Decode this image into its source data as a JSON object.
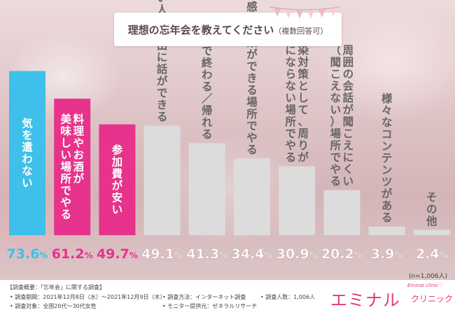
{
  "chart_data": {
    "type": "bar",
    "title": "理想の忘年会を教えてください",
    "subtitle": "（複数回答可）",
    "categories": [
      "気を遣わない",
      "料理やお酒が美味しい場所でやる",
      "参加費が安い",
      "話したい人と自由に話ができる",
      "一次会で終わる／帰れる",
      "感染対策ができる場所でやる",
      "感染対策として、周りが気にならない場所でやる",
      "周囲の会話が聞こえにくい（聞こえない）場所でやる",
      "様々なコンテンツがある",
      "その他"
    ],
    "label_lines": [
      [
        "気を遣わない"
      ],
      [
        "料理やお酒が",
        "美味しい場所でやる"
      ],
      [
        "参加費が安い"
      ],
      [
        "話したい人と自由に話ができる"
      ],
      [
        "一次会で終わる／帰れる"
      ],
      [
        "感染対策ができる場所でやる"
      ],
      [
        "感染対策として、周りが",
        "気にならない場所でやる"
      ],
      [
        "周囲の会話が聞こえにくい",
        "（聞こえない）場所でやる"
      ],
      [
        "様々なコンテンツがある"
      ],
      [
        "その他"
      ]
    ],
    "values": [
      73.6,
      61.2,
      49.7,
      49.1,
      41.3,
      34.4,
      30.9,
      20.2,
      3.9,
      2.4
    ],
    "value_labels": [
      "73.6%",
      "61.2%",
      "49.7%",
      "49.1%",
      "41.3%",
      "34.4%",
      "30.9%",
      "20.2%",
      "3.9%",
      "2.4%"
    ],
    "colors": [
      "#3ec0ea",
      "#e7338c",
      "#e7338c",
      "#dcdcdc",
      "#dcdcdc",
      "#dcdcdc",
      "#dcdcdc",
      "#dcdcdc",
      "#dcdcdc",
      "#dcdcdc"
    ],
    "value_colors": [
      "#3ec0ea",
      "#e7338c",
      "#e7338c",
      "#ffffff",
      "#ffffff",
      "#ffffff",
      "#ffffff",
      "#ffffff",
      "#ffffff",
      "#ffffff"
    ],
    "label_colors": [
      "#ffffff",
      "#ffffff",
      "#ffffff",
      "#666666",
      "#666666",
      "#666666",
      "#666666",
      "#666666",
      "#666666",
      "#666666"
    ],
    "ylim": [
      0,
      75
    ],
    "grid": false,
    "n_note": "(n=1,006人)"
  },
  "footer": {
    "heading": "【調査概要：「忘年会」に関する調査】",
    "period": "• 調査期間：2021年12月8日（水）～2021年12月9日（木）",
    "target": "• 調査対象：全国20代～30代女性",
    "method": "• 調査方法：インターネット調査",
    "provider": "• モニター提供元：ゼネラルリサーチ",
    "respondents": "• 調査人数：1,006人"
  },
  "logo": {
    "main": "エミナル",
    "sub": "クリニック",
    "tag": "Eminal clinic♡"
  },
  "colors": {
    "accent_blue": "#3ec0ea",
    "accent_pink": "#e7338c",
    "neutral_bar": "#dcdcdc"
  }
}
